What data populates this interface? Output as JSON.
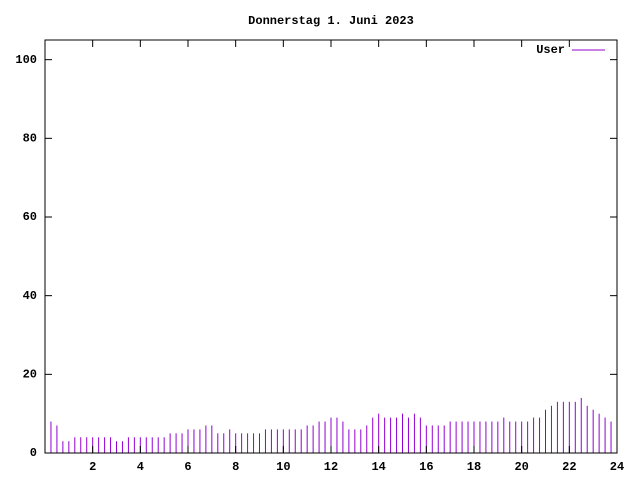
{
  "chart_data": {
    "type": "impulse",
    "title": "Donnerstag 1. Juni 2023",
    "x": [
      0,
      0.25,
      0.5,
      0.75,
      1,
      1.25,
      1.5,
      1.75,
      2,
      2.25,
      2.5,
      2.75,
      3,
      3.25,
      3.5,
      3.75,
      4,
      4.25,
      4.5,
      4.75,
      5,
      5.25,
      5.5,
      5.75,
      6,
      6.25,
      6.5,
      6.75,
      7,
      7.25,
      7.5,
      7.75,
      8,
      8.25,
      8.5,
      8.75,
      9,
      9.25,
      9.5,
      9.75,
      10,
      10.25,
      10.5,
      10.75,
      11,
      11.25,
      11.5,
      11.75,
      12,
      12.25,
      12.5,
      12.75,
      13,
      13.25,
      13.5,
      13.75,
      14,
      14.25,
      14.5,
      14.75,
      15,
      15.25,
      15.5,
      15.75,
      16,
      16.25,
      16.5,
      16.75,
      17,
      17.25,
      17.5,
      17.75,
      18,
      18.25,
      18.5,
      18.75,
      19,
      19.25,
      19.5,
      19.75,
      20,
      20.25,
      20.5,
      20.75,
      21,
      21.25,
      21.5,
      21.75,
      22,
      22.25,
      22.5,
      22.75,
      23,
      23.25,
      23.5,
      23.75
    ],
    "series": [
      {
        "name": "User",
        "color": "#9400d3",
        "values": [
          8,
          8,
          7,
          3,
          3,
          4,
          4,
          4,
          4,
          4,
          4,
          4,
          3,
          3,
          4,
          4,
          4,
          4,
          4,
          4,
          4,
          5,
          5,
          5,
          6,
          6,
          6,
          7,
          7,
          5,
          5,
          6,
          5,
          5,
          5,
          5,
          5,
          6,
          6,
          6,
          6,
          6,
          6,
          6,
          7,
          7,
          8,
          8,
          9,
          9,
          8,
          6,
          6,
          6,
          7,
          9,
          10,
          9,
          9,
          9,
          10,
          9,
          10,
          9,
          7,
          7,
          7,
          7,
          8,
          8,
          8,
          8,
          8,
          8,
          8,
          8,
          8,
          9,
          8,
          8,
          8,
          8,
          9,
          9,
          11,
          12,
          13,
          13,
          13,
          13,
          14,
          12,
          11,
          10,
          9,
          8
        ]
      }
    ],
    "xlim": [
      0,
      24
    ],
    "xticks": [
      2,
      4,
      6,
      8,
      10,
      12,
      14,
      16,
      18,
      20,
      22,
      24
    ],
    "ylim": [
      0,
      105
    ],
    "yticks": [
      0,
      20,
      40,
      60,
      80,
      100
    ],
    "legend": "top-right"
  }
}
